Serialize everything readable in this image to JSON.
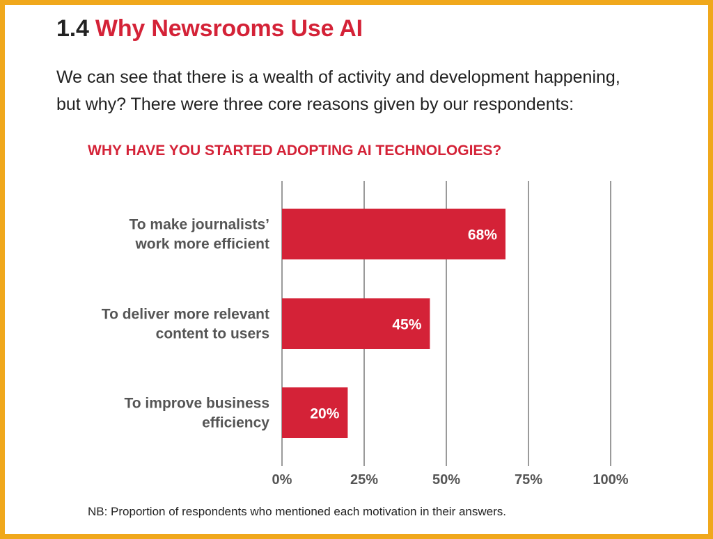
{
  "section": {
    "number": "1.4",
    "title": "Why Newsrooms Use AI"
  },
  "intro_lines": [
    "We can see that there is a wealth of activity and development happening,",
    "but why? There were three core reasons given by our respondents:"
  ],
  "footnote": "NB: Proportion of respondents who mentioned each motivation in their answers.",
  "colors": {
    "accent": "#d42237",
    "frame": "#f0a81c",
    "text": "#222222",
    "label": "#555555",
    "grid": "#9a9a9a"
  },
  "chart_data": {
    "type": "bar",
    "orientation": "horizontal",
    "title": "WHY HAVE YOU STARTED ADOPTING AI TECHNOLOGIES?",
    "categories": [
      [
        "To make journalists’",
        "work more efficient"
      ],
      [
        "To deliver more relevant",
        "content to users"
      ],
      [
        "To improve business",
        "efficiency"
      ]
    ],
    "values": [
      68,
      45,
      20
    ],
    "value_labels": [
      "68%",
      "45%",
      "20%"
    ],
    "xlim": [
      0,
      100
    ],
    "xticks": [
      0,
      25,
      50,
      75,
      100
    ],
    "xtick_labels": [
      "0%",
      "25%",
      "50%",
      "75%",
      "100%"
    ],
    "grid": true,
    "xlabel": "",
    "ylabel": ""
  }
}
